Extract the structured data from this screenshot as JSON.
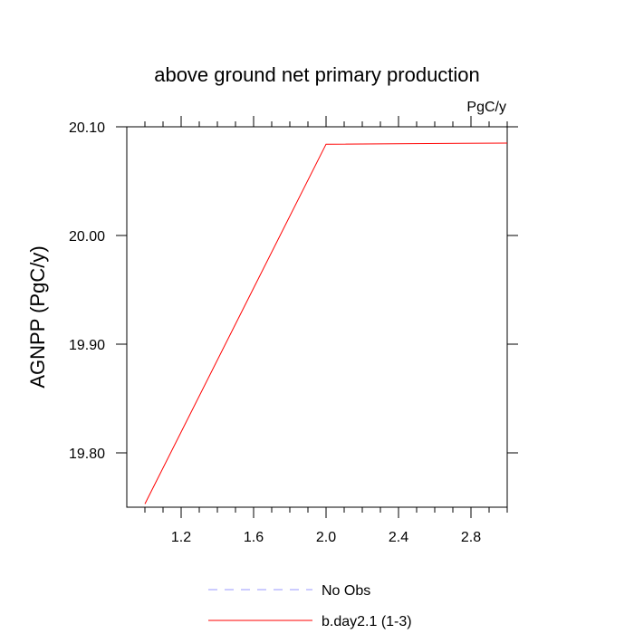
{
  "chart_data": {
    "type": "line",
    "title": "above ground net primary production",
    "units_label": "PgC/y",
    "xlabel": "",
    "ylabel": "AGNPP  (PgC/y)",
    "xlim": [
      0.9,
      3.0
    ],
    "ylim": [
      19.75,
      20.1
    ],
    "x_ticks": [
      1.2,
      1.6,
      2.0,
      2.4,
      2.8
    ],
    "x_tick_labels": [
      "1.2",
      "1.6",
      "2.0",
      "2.4",
      "2.8"
    ],
    "y_ticks": [
      19.8,
      19.9,
      20.0,
      20.1
    ],
    "y_tick_labels": [
      "19.80",
      "19.90",
      "20.00",
      "20.10"
    ],
    "series": [
      {
        "name": "b.day2.1 (1-3)",
        "color": "#ff0000",
        "dash": "solid",
        "x": [
          1,
          2,
          3
        ],
        "y": [
          19.753,
          20.084,
          20.085
        ]
      }
    ],
    "legend": [
      {
        "label": "No Obs",
        "color": "#9999ff",
        "dash": "dashed"
      },
      {
        "label": "b.day2.1 (1-3)",
        "color": "#ff0000",
        "dash": "solid"
      }
    ],
    "legend_position": "bottom-center"
  }
}
